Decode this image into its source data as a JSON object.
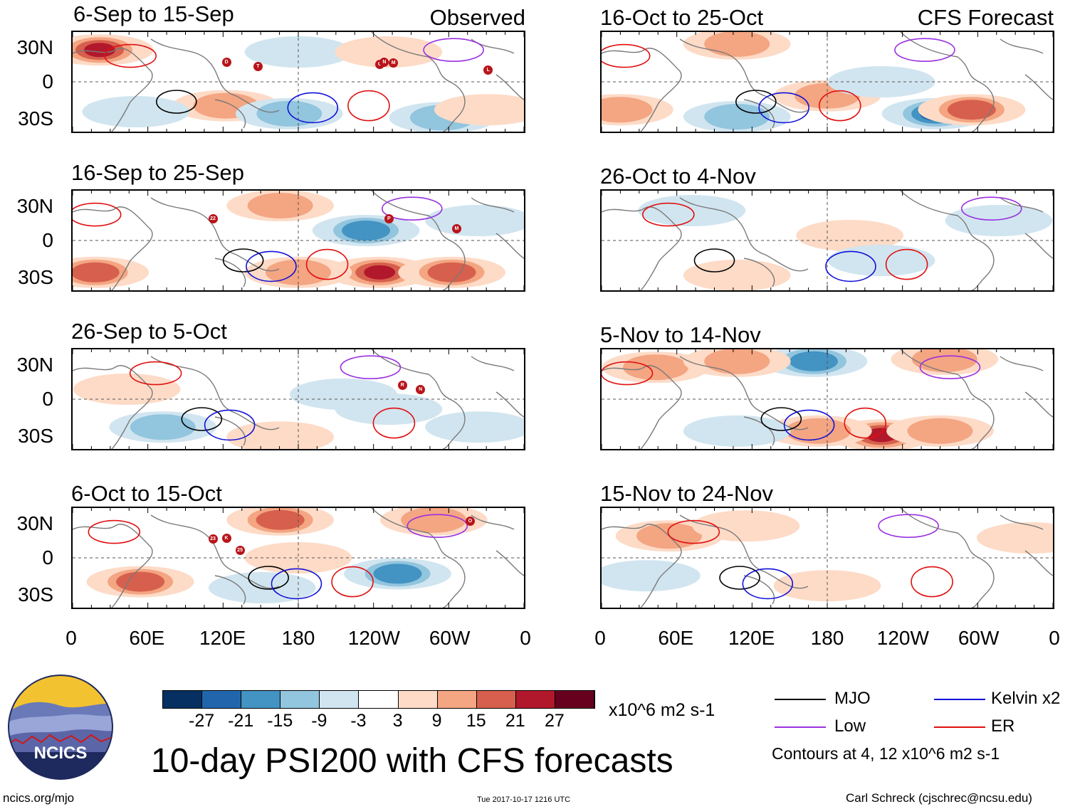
{
  "observed_label": "Observed",
  "forecast_label": "CFS Forecast",
  "observed_panels": [
    {
      "title": "6-Sep to 15-Sep",
      "storms": [
        "D",
        "T",
        "O",
        "N",
        "M",
        "L"
      ]
    },
    {
      "title": "16-Sep to 25-Sep",
      "storms": [
        "22",
        "P",
        "M"
      ]
    },
    {
      "title": "26-Sep to 5-Oct",
      "storms": [
        "R",
        "N"
      ]
    },
    {
      "title": "6-Oct to 15-Oct",
      "storms": [
        "23",
        "K",
        "25",
        "O"
      ]
    }
  ],
  "forecast_panels": [
    {
      "title": "16-Oct to 25-Oct"
    },
    {
      "title": "26-Oct to 4-Nov"
    },
    {
      "title": "5-Nov to 14-Nov"
    },
    {
      "title": "15-Nov to 24-Nov"
    }
  ],
  "lat_labels": [
    "30N",
    "0",
    "30S"
  ],
  "lon_labels": [
    "0",
    "60E",
    "120E",
    "180",
    "120W",
    "60W",
    "0"
  ],
  "colorbar": {
    "colors": [
      "#053061",
      "#2166ac",
      "#4393c3",
      "#92c5de",
      "#d1e5f0",
      "#ffffff",
      "#fddbc7",
      "#f4a582",
      "#d6604d",
      "#b2182b",
      "#67001f"
    ],
    "tick_labels": [
      "-27",
      "-21",
      "-15",
      "-9",
      "-3",
      "3",
      "9",
      "15",
      "21",
      "27"
    ],
    "units": "x10^6 m2 s-1"
  },
  "legend": {
    "items": [
      {
        "label": "MJO",
        "color": "#000000"
      },
      {
        "label": "Kelvin x2",
        "color": "#1010d8"
      },
      {
        "label": "Low",
        "color": "#9a30e0"
      },
      {
        "label": "ER",
        "color": "#e01010"
      }
    ],
    "contour_note": "Contours at 4, 12 x10^6 m2 s-1"
  },
  "main_title": "10-day PSI200 with CFS forecasts",
  "logo_text": "NCICS",
  "footer": {
    "url": "ncics.org/mjo",
    "timestamp": "Tue 2017-10-17 1216 UTC",
    "credit": "Carl Schreck (cjschrec@ncsu.edu)"
  }
}
